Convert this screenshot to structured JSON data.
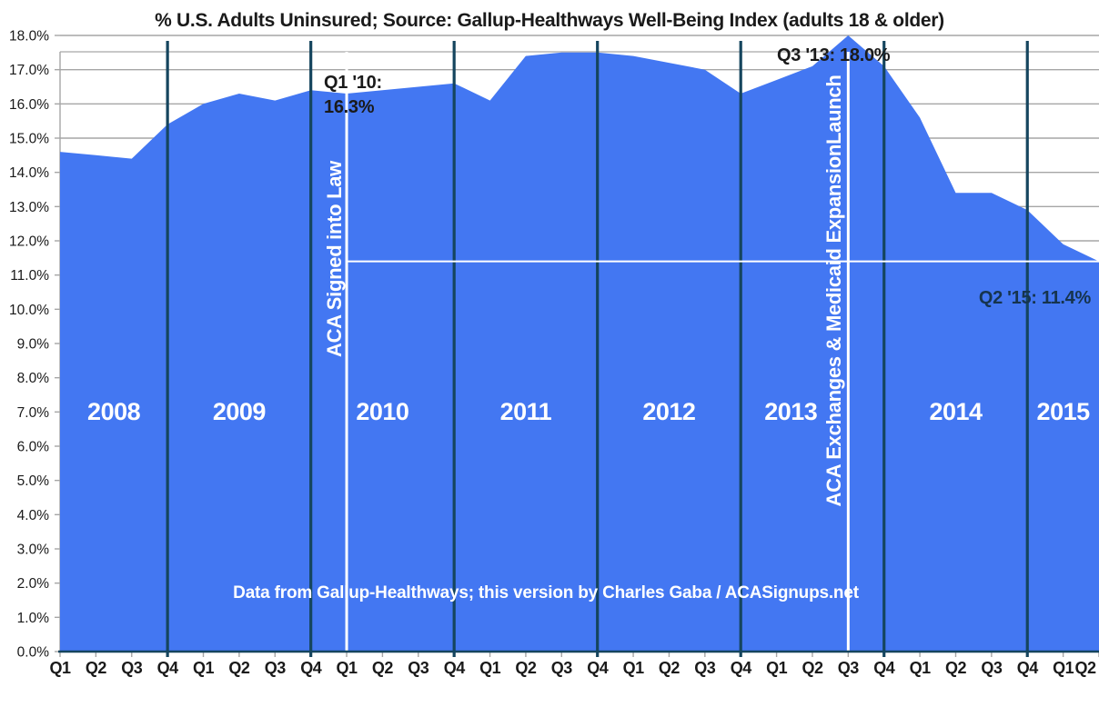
{
  "page": {
    "title": "% U.S. Adults Uninsured; Source: Gallup-Healthways Well-Being Index (adults 18 & older)"
  },
  "chart_data": {
    "type": "area",
    "title": "% U.S. Adults Uninsured; Source: Gallup-Healthways Well-Being Index (adults 18 & older)",
    "categories": [
      "2008 Q1",
      "2008 Q2",
      "2008 Q3",
      "2008 Q4",
      "2009 Q1",
      "2009 Q2",
      "2009 Q3",
      "2009 Q4",
      "2010 Q1",
      "2010 Q2",
      "2010 Q3",
      "2010 Q4",
      "2011 Q1",
      "2011 Q2",
      "2011 Q3",
      "2011 Q4",
      "2012 Q1",
      "2012 Q2",
      "2012 Q3",
      "2012 Q4",
      "2013 Q1",
      "2013 Q2",
      "2013 Q3",
      "2013 Q4",
      "2014 Q1",
      "2014 Q2",
      "2014 Q3",
      "2014 Q4",
      "2015 Q1",
      "2015 Q2"
    ],
    "values": [
      14.6,
      14.5,
      14.4,
      15.4,
      16.0,
      16.3,
      16.1,
      16.4,
      16.3,
      16.4,
      16.5,
      16.6,
      16.1,
      17.4,
      17.5,
      17.5,
      17.4,
      17.2,
      17.0,
      16.3,
      16.7,
      17.1,
      18.0,
      17.1,
      15.6,
      13.4,
      13.4,
      12.9,
      11.9,
      11.4
    ],
    "x_tick_labels": [
      "Q1",
      "Q2",
      "Q3",
      "Q4",
      "Q1",
      "Q2",
      "Q3",
      "Q4",
      "Q1",
      "Q2",
      "Q3",
      "Q4",
      "Q1",
      "Q2",
      "Q3",
      "Q4",
      "Q1",
      "Q2",
      "Q3",
      "Q4",
      "Q1",
      "Q2",
      "Q3",
      "Q4",
      "Q1",
      "Q2",
      "Q3",
      "Q4",
      "Q1",
      "Q2"
    ],
    "year_labels": [
      "2008",
      "2009",
      "2010",
      "2011",
      "2012",
      "2013",
      "2014",
      "2015"
    ],
    "y_tick_labels": [
      "0.0%",
      "1.0%",
      "2.0%",
      "3.0%",
      "4.0%",
      "5.0%",
      "6.0%",
      "7.0%",
      "8.0%",
      "9.0%",
      "10.0%",
      "11.0%",
      "12.0%",
      "13.0%",
      "14.0%",
      "15.0%",
      "16.0%",
      "17.0%",
      "18.0%"
    ],
    "ylim": [
      0,
      18
    ],
    "grid": "horizontal",
    "legend": "none",
    "year_separator_quarter_indices": [
      3,
      7,
      11,
      15,
      19,
      23,
      27
    ],
    "event_lines": [
      {
        "label": "ACA Signed into Law",
        "quarter_index": 8
      },
      {
        "label": "ACA Exchanges & Medicaid ExpansionLaunch",
        "quarter_index": 22
      }
    ],
    "reference_line": {
      "value": 11.4,
      "from_quarter_index": 8
    },
    "annotations": [
      {
        "id": "q1_10",
        "line1": "Q1 '10:",
        "line2": "16.3%",
        "quarter": "2010 Q1",
        "value": 16.3
      },
      {
        "id": "q3_13",
        "text": "Q3 '13: 18.0%",
        "quarter": "2013 Q3",
        "value": 18.0
      },
      {
        "id": "q2_15",
        "text": "Q2 '15: 11.4%",
        "quarter": "2015 Q2",
        "value": 11.4
      }
    ],
    "credit": "Data from Gallup-Healthways; this version by Charles Gaba / ACASignups.net",
    "colors": {
      "area_fill": "#4377F2",
      "year_line": "#15455E",
      "grid_line": "#A6A6A6",
      "event_line": "#FFFFFF",
      "reference_line": "#FFFFFF",
      "annotation_text": "#1A1A1A",
      "annotation_dark_text": "#16344E",
      "axis_text": "#1A1A1A",
      "label_white": "#FFFFFF"
    }
  }
}
